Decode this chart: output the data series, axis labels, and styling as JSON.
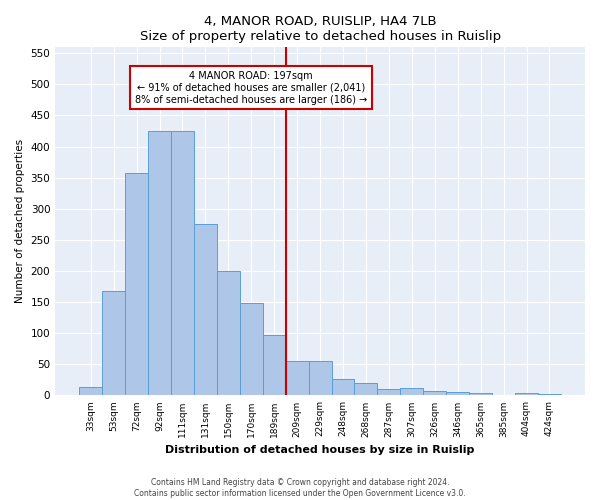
{
  "title": "4, MANOR ROAD, RUISLIP, HA4 7LB",
  "subtitle": "Size of property relative to detached houses in Ruislip",
  "xlabel": "Distribution of detached houses by size in Ruislip",
  "ylabel": "Number of detached properties",
  "categories": [
    "33sqm",
    "53sqm",
    "72sqm",
    "92sqm",
    "111sqm",
    "131sqm",
    "150sqm",
    "170sqm",
    "189sqm",
    "209sqm",
    "229sqm",
    "248sqm",
    "268sqm",
    "287sqm",
    "307sqm",
    "326sqm",
    "346sqm",
    "365sqm",
    "385sqm",
    "404sqm",
    "424sqm"
  ],
  "values": [
    13,
    168,
    357,
    425,
    425,
    275,
    200,
    148,
    97,
    55,
    55,
    27,
    20,
    11,
    12,
    7,
    5,
    4,
    1,
    4,
    3
  ],
  "bar_color": "#aec6e8",
  "bar_edge_color": "#5a9fd4",
  "vline_x_index": 8,
  "vline_color": "#cc0000",
  "annotation_title": "4 MANOR ROAD: 197sqm",
  "annotation_line1": "← 91% of detached houses are smaller (2,041)",
  "annotation_line2": "8% of semi-detached houses are larger (186) →",
  "annotation_box_color": "#cc0000",
  "annotation_text_color": "#000000",
  "ylim": [
    0,
    560
  ],
  "yticks": [
    0,
    50,
    100,
    150,
    200,
    250,
    300,
    350,
    400,
    450,
    500,
    550
  ],
  "background_color": "#e8eef8",
  "grid_color": "#ffffff",
  "footer_line1": "Contains HM Land Registry data © Crown copyright and database right 2024.",
  "footer_line2": "Contains public sector information licensed under the Open Government Licence v3.0."
}
